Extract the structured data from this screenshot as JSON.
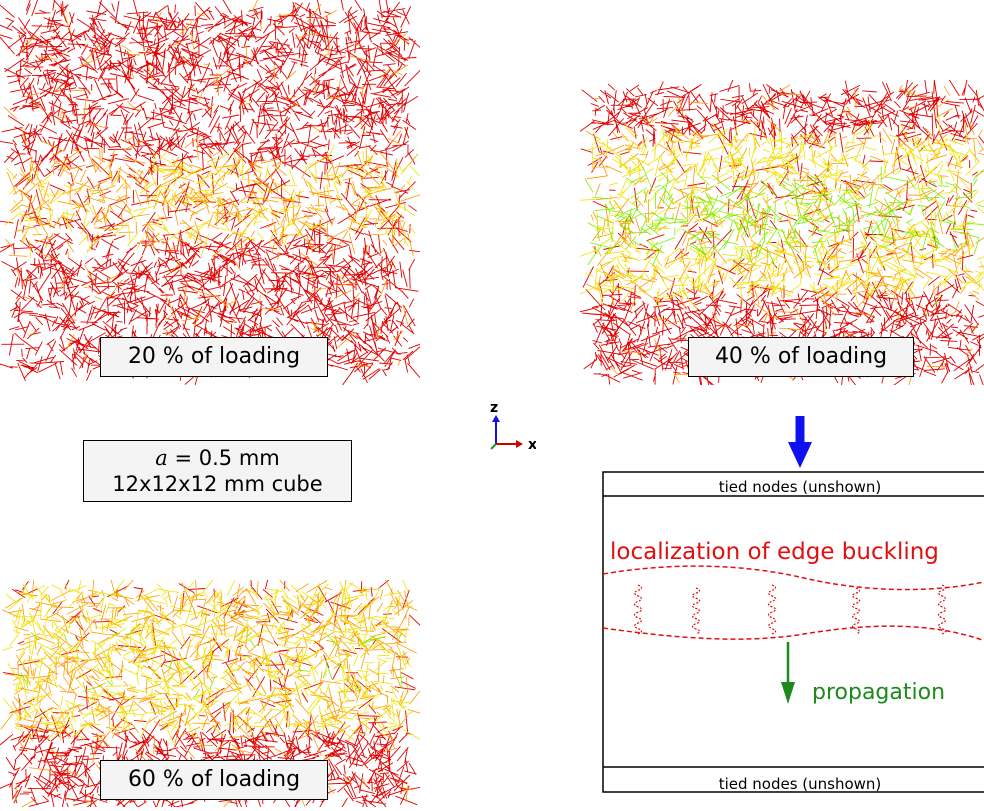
{
  "panels": [
    {
      "label": "20 % of loading"
    },
    {
      "label": "40 % of loading"
    },
    {
      "label": "60 % of loading"
    }
  ],
  "parameters": {
    "a_symbol": "a",
    "a_value": " = 0.5 mm",
    "cube": "12x12x12 mm cube"
  },
  "axes_triad": {
    "z_label": "z",
    "x_label": "x"
  },
  "schematic": {
    "top_band": "tied nodes (unshown)",
    "bottom_band": "tied nodes (unshown)",
    "localization_label": "localization of edge buckling",
    "propagation_label": "propagation"
  },
  "colors": {
    "red": "#e00000",
    "orange": "#ff9a00",
    "yellow": "#f2e200",
    "green_bright": "#7cf000",
    "arrow_blue": "#1010ee",
    "propagation_green": "#1c8a1c",
    "localization_red": "#e01010"
  }
}
